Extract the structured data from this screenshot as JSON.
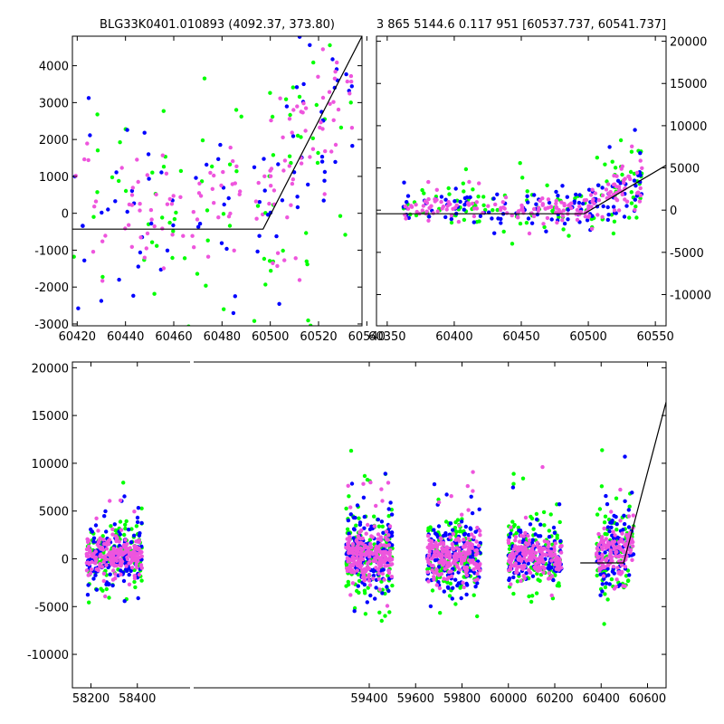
{
  "chart_data": [
    {
      "type": "scatter",
      "title": "BLG33K0401.010893 (4092.37, 373.80)",
      "xlim": [
        60418,
        60538
      ],
      "ylim": [
        -3050,
        4800
      ],
      "xticks": [
        60420,
        60440,
        60460,
        60480,
        60500,
        60520,
        60540
      ],
      "yticks": [
        -3000,
        -2000,
        -1000,
        0,
        1000,
        2000,
        3000,
        4000
      ],
      "y_axis_side": "left",
      "series_colors": [
        "#0000ff",
        "#00ff00",
        "#ee55dd"
      ],
      "model_line": {
        "x": [
          60418,
          60497,
          60538
        ],
        "y": [
          -430,
          -430,
          4800
        ]
      },
      "scatter_cloud": {
        "segments": [
          {
            "x_range": [
              60418,
              60497
            ],
            "spread_low": -1800,
            "spread_high": 3000,
            "count": 160
          },
          {
            "x_range": [
              60497,
              60535
            ],
            "spread_low": -1000,
            "spread_high": 4500,
            "count": 140
          }
        ]
      }
    },
    {
      "type": "scatter",
      "title": "3 865 5144.6 0.117 951 [60537.737, 60541.737]",
      "xlim": [
        60342,
        60558
      ],
      "ylim": [
        -13700,
        20600
      ],
      "xticks": [
        60350,
        60400,
        60450,
        60500,
        60550
      ],
      "yticks": [
        -10000,
        -5000,
        0,
        5000,
        10000,
        15000,
        20000
      ],
      "y_axis_side": "right",
      "series_colors": [
        "#0000ff",
        "#00ff00",
        "#ee55dd"
      ],
      "model_line": {
        "x": [
          60342,
          60497,
          60558
        ],
        "y": [
          -430,
          -430,
          5300
        ]
      },
      "scatter_cloud": {
        "segments": [
          {
            "x_range": [
              60362,
              60500
            ],
            "spread_low": -1500,
            "spread_high": 2500,
            "count": 260
          },
          {
            "x_range": [
              60500,
              60540
            ],
            "spread_low": -500,
            "spread_high": 6000,
            "count": 140
          }
        ]
      }
    },
    {
      "type": "scatter",
      "title": "",
      "xlim": [
        58120,
        60680
      ],
      "ylim": [
        -13500,
        20600
      ],
      "xticks": [
        58200,
        58400,
        59400,
        59600,
        59800,
        60000,
        60200,
        60400,
        60600
      ],
      "yticks": [
        -10000,
        -5000,
        0,
        5000,
        10000,
        15000,
        20000
      ],
      "y_axis_side": "left",
      "series_colors": [
        "#0000ff",
        "#00ff00",
        "#ee55dd"
      ],
      "model_line": {
        "x": [
          60310,
          60497,
          60680
        ],
        "y": [
          -430,
          -430,
          16400
        ]
      },
      "scatter_cloud": {
        "segments": [
          {
            "x_range": [
              58180,
              58420
            ],
            "spread_low": -2500,
            "spread_high": 3500,
            "count": 420
          },
          {
            "x_range": [
              59300,
              59500
            ],
            "spread_low": -2500,
            "spread_high": 4500,
            "count": 520
          },
          {
            "x_range": [
              59650,
              59880
            ],
            "spread_low": -2500,
            "spread_high": 4000,
            "count": 460
          },
          {
            "x_range": [
              60000,
              60230
            ],
            "spread_low": -2500,
            "spread_high": 3500,
            "count": 400
          },
          {
            "x_range": [
              60380,
              60540
            ],
            "spread_low": -2000,
            "spread_high": 5000,
            "count": 300
          }
        ]
      }
    }
  ]
}
